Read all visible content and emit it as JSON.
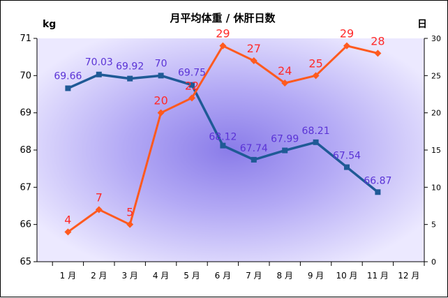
{
  "chart_data": {
    "type": "line",
    "title": "月平均体重 / 休肝日数",
    "left_axis_unit": "kg",
    "right_axis_unit": "日",
    "categories": [
      "1 月",
      "2 月",
      "3 月",
      "4 月",
      "5 月",
      "6 月",
      "7 月",
      "8 月",
      "9 月",
      "10 月",
      "11 月",
      "12 月"
    ],
    "y_left": {
      "ylim": [
        65,
        71
      ],
      "ticks": [
        "65",
        "66",
        "67",
        "68",
        "69",
        "70",
        "71"
      ]
    },
    "y_right": {
      "ylim": [
        0,
        30
      ],
      "ticks": [
        "0",
        "5",
        "10",
        "15",
        "20",
        "25",
        "30"
      ]
    },
    "grid": false,
    "series": [
      {
        "axis": "left",
        "color": "#1f5a96",
        "marker": "square",
        "values": [
          69.66,
          70.03,
          69.92,
          70,
          69.75,
          68.12,
          67.74,
          67.99,
          68.21,
          67.54,
          66.87,
          null
        ],
        "labels": [
          "69.66",
          "70.03",
          "69.92",
          "70",
          "69.75",
          "68.12",
          "67.74",
          "67.99",
          "68.21",
          "67.54",
          "66.87",
          ""
        ]
      },
      {
        "axis": "right",
        "color": "#ff5a1f",
        "marker": "diamond",
        "values": [
          4,
          7,
          5,
          20,
          22,
          29,
          27,
          24,
          25,
          29,
          28,
          null
        ],
        "labels": [
          "4",
          "7",
          "5",
          "20",
          "22",
          "29",
          "27",
          "24",
          "25",
          "29",
          "28",
          ""
        ]
      }
    ],
    "colors": {
      "plot_center": "#9b8ef0",
      "plot_edge": "#e9e6ff",
      "weight_label": "#5a33d6",
      "days_label": "#ff2a2a"
    }
  }
}
